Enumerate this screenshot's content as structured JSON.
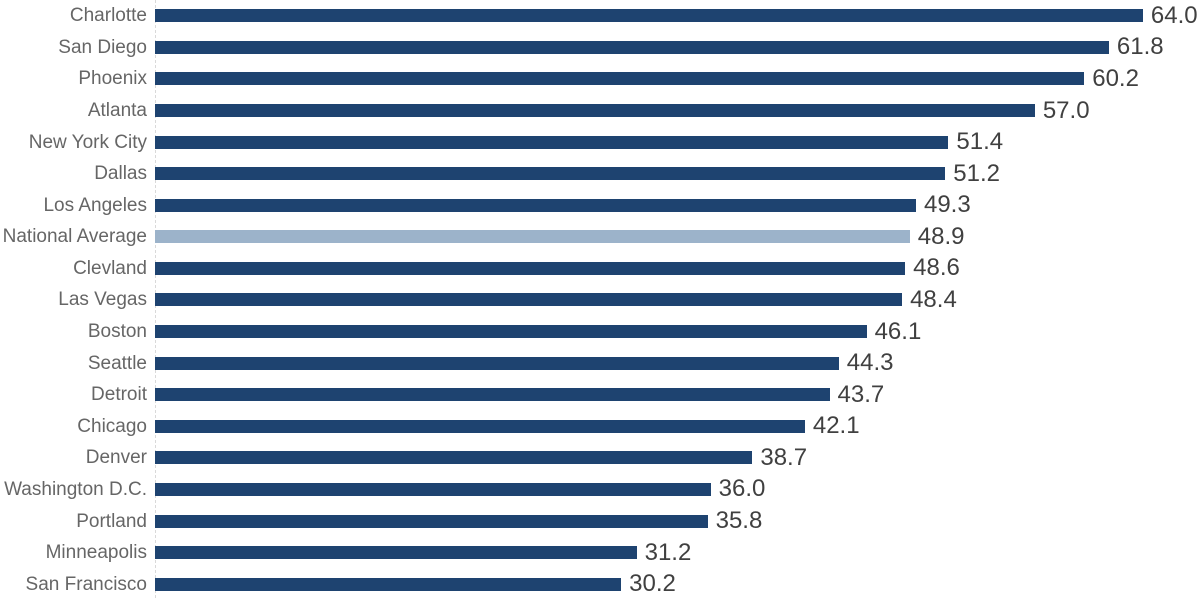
{
  "chart_data": {
    "type": "bar",
    "orientation": "horizontal",
    "title": "",
    "xlabel": "",
    "ylabel": "",
    "grid": "off",
    "legend": "none",
    "axis_max": 67.7,
    "categories": [
      "Charlotte",
      "San Diego",
      "Phoenix",
      "Atlanta",
      "New York City",
      "Dallas",
      "Los Angeles",
      "National Average",
      "Clevland",
      "Las Vegas",
      "Boston",
      "Seattle",
      "Detroit",
      "Chicago",
      "Denver",
      "Washington D.C.",
      "Portland",
      "Minneapolis",
      "San Francisco"
    ],
    "values": [
      64.0,
      61.8,
      60.2,
      57.0,
      51.4,
      51.2,
      49.3,
      48.9,
      48.6,
      48.4,
      46.1,
      44.3,
      43.7,
      42.1,
      38.7,
      36.0,
      35.8,
      31.2,
      30.2
    ],
    "value_labels": [
      "64.0",
      "61.8",
      "60.2",
      "57.0",
      "51.4",
      "51.2",
      "49.3",
      "48.9",
      "48.6",
      "48.4",
      "46.1",
      "44.3",
      "43.7",
      "42.1",
      "38.7",
      "36.0",
      "35.8",
      "31.2",
      "30.2"
    ],
    "highlight_category": "National Average",
    "colors": {
      "bar": "#1e4370",
      "highlight_bar": "#9cb3ca",
      "category_label": "#666666",
      "value_label": "#404040",
      "axis_line": "#d9d9d9",
      "background": "#ffffff"
    }
  }
}
